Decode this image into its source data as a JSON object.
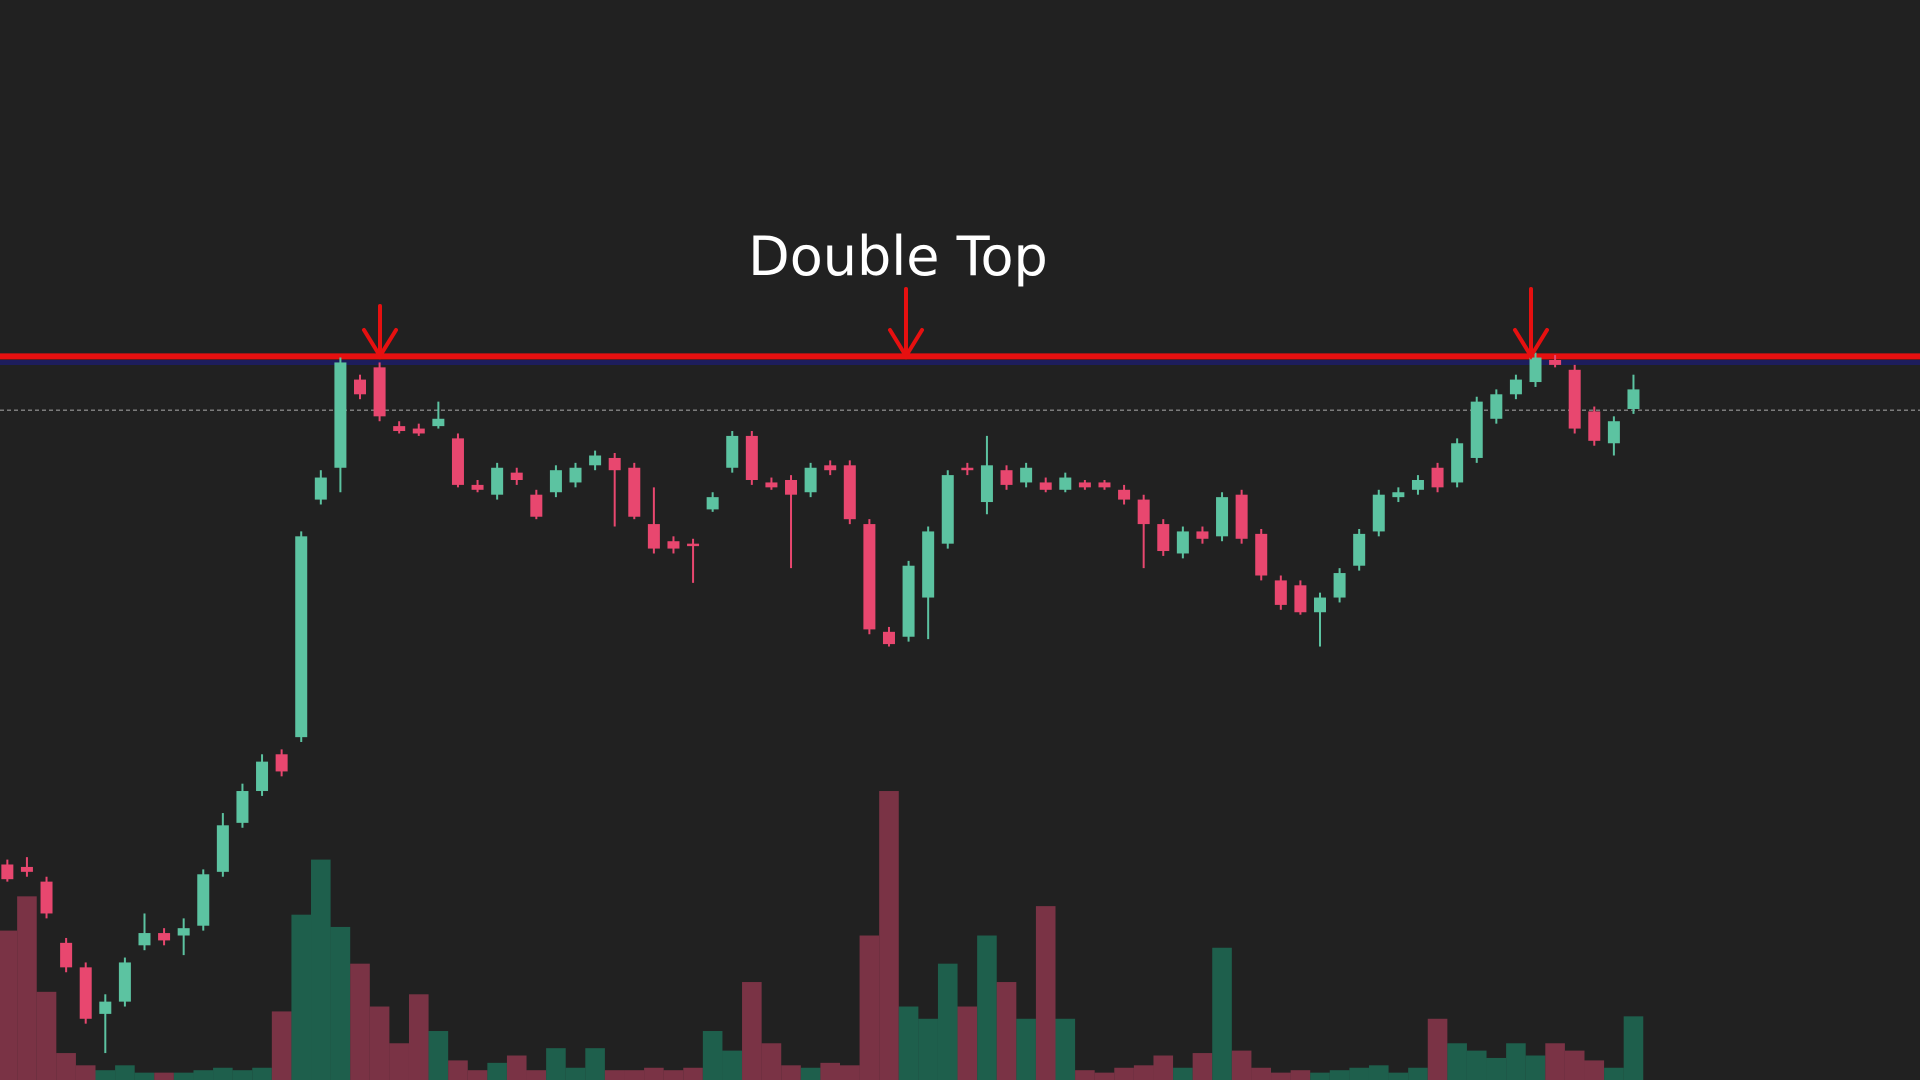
{
  "chart_data": {
    "type": "candlestick",
    "title": "Double Top",
    "up_color": "#5cc3a1",
    "down_color": "#e8476f",
    "volume_up_color": "#1e5f4c",
    "volume_down_color": "#7a3345",
    "ylim": [
      0,
      882
    ],
    "ohlc": [
      [
        176,
        180,
        162,
        164
      ],
      [
        174,
        182,
        166,
        170
      ],
      [
        162,
        166,
        132,
        136
      ],
      [
        112,
        116,
        88,
        92
      ],
      [
        92,
        96,
        46,
        50
      ],
      [
        54,
        70,
        22,
        64
      ],
      [
        64,
        100,
        60,
        96
      ],
      [
        110,
        136,
        106,
        120
      ],
      [
        120,
        124,
        110,
        114
      ],
      [
        118,
        132,
        102,
        124
      ],
      [
        126,
        172,
        122,
        168
      ],
      [
        170,
        218,
        166,
        208
      ],
      [
        210,
        242,
        206,
        236
      ],
      [
        236,
        266,
        232,
        260
      ],
      [
        266,
        270,
        248,
        252
      ],
      [
        280,
        448,
        276,
        444
      ],
      [
        474,
        498,
        470,
        492
      ],
      [
        500,
        590,
        480,
        586
      ],
      [
        572,
        576,
        556,
        560
      ],
      [
        582,
        586,
        538,
        542
      ],
      [
        534,
        538,
        528,
        530
      ],
      [
        532,
        536,
        526,
        528
      ],
      [
        534,
        554,
        532,
        540
      ],
      [
        524,
        528,
        484,
        486
      ],
      [
        486,
        490,
        480,
        482
      ],
      [
        478,
        504,
        474,
        500
      ],
      [
        496,
        500,
        486,
        490
      ],
      [
        478,
        482,
        458,
        460
      ],
      [
        480,
        502,
        476,
        498
      ],
      [
        488,
        504,
        484,
        500
      ],
      [
        502,
        514,
        498,
        510
      ],
      [
        508,
        512,
        452,
        498
      ],
      [
        500,
        504,
        458,
        460
      ],
      [
        454,
        484,
        430,
        434
      ],
      [
        440,
        444,
        430,
        434
      ],
      [
        438,
        442,
        406,
        436
      ],
      [
        466,
        480,
        464,
        476
      ],
      [
        500,
        530,
        496,
        526
      ],
      [
        526,
        530,
        486,
        490
      ],
      [
        488,
        492,
        482,
        484
      ],
      [
        490,
        494,
        418,
        478
      ],
      [
        480,
        504,
        476,
        500
      ],
      [
        502,
        506,
        494,
        498
      ],
      [
        502,
        506,
        454,
        458
      ],
      [
        454,
        458,
        364,
        368
      ],
      [
        366,
        370,
        354,
        356
      ],
      [
        362,
        424,
        358,
        420
      ],
      [
        394,
        452,
        360,
        448
      ],
      [
        438,
        498,
        434,
        494
      ],
      [
        500,
        504,
        494,
        498
      ],
      [
        472,
        526,
        462,
        502
      ],
      [
        498,
        502,
        482,
        486
      ],
      [
        488,
        504,
        484,
        500
      ],
      [
        488,
        492,
        480,
        482
      ],
      [
        482,
        496,
        480,
        492
      ],
      [
        488,
        490,
        482,
        484
      ],
      [
        488,
        490,
        482,
        484
      ],
      [
        482,
        486,
        470,
        474
      ],
      [
        474,
        478,
        418,
        454
      ],
      [
        454,
        458,
        428,
        432
      ],
      [
        430,
        452,
        426,
        448
      ],
      [
        448,
        452,
        438,
        442
      ],
      [
        444,
        480,
        440,
        476
      ],
      [
        478,
        482,
        438,
        442
      ],
      [
        446,
        450,
        408,
        412
      ],
      [
        408,
        412,
        384,
        388
      ],
      [
        404,
        408,
        380,
        382
      ],
      [
        382,
        398,
        354,
        394
      ],
      [
        394,
        418,
        390,
        414
      ],
      [
        420,
        450,
        416,
        446
      ],
      [
        448,
        482,
        444,
        478
      ],
      [
        476,
        484,
        472,
        480
      ],
      [
        482,
        494,
        478,
        490
      ],
      [
        500,
        504,
        480,
        484
      ],
      [
        488,
        524,
        484,
        520
      ],
      [
        508,
        558,
        504,
        554
      ],
      [
        540,
        564,
        536,
        560
      ],
      [
        560,
        576,
        556,
        572
      ],
      [
        570,
        594,
        566,
        590
      ],
      [
        588,
        592,
        582,
        584
      ],
      [
        580,
        584,
        528,
        532
      ],
      [
        546,
        550,
        518,
        522
      ],
      [
        520,
        542,
        510,
        538
      ],
      [
        548,
        576,
        544,
        564
      ]
    ],
    "volume": [
      122,
      150,
      72,
      22,
      12,
      8,
      12,
      6,
      6,
      6,
      8,
      10,
      8,
      10,
      56,
      135,
      180,
      125,
      95,
      60,
      30,
      70,
      40,
      16,
      8,
      14,
      20,
      8,
      26,
      10,
      26,
      8,
      8,
      10,
      8,
      10,
      40,
      24,
      80,
      30,
      12,
      10,
      14,
      12,
      118,
      236,
      60,
      50,
      95,
      60,
      118,
      80,
      50,
      142,
      50,
      8,
      6,
      10,
      12,
      20,
      10,
      22,
      108,
      24,
      10,
      6,
      8,
      6,
      8,
      10,
      12,
      6,
      10,
      50,
      30,
      24,
      18,
      30,
      20,
      30,
      24,
      16,
      10,
      52
    ],
    "levels": [
      {
        "value": 591,
        "color": "#e61010"
      },
      {
        "value": 586,
        "color": "#1d1d5c"
      },
      {
        "value": 547,
        "color": "#7c7c7c"
      }
    ]
  }
}
